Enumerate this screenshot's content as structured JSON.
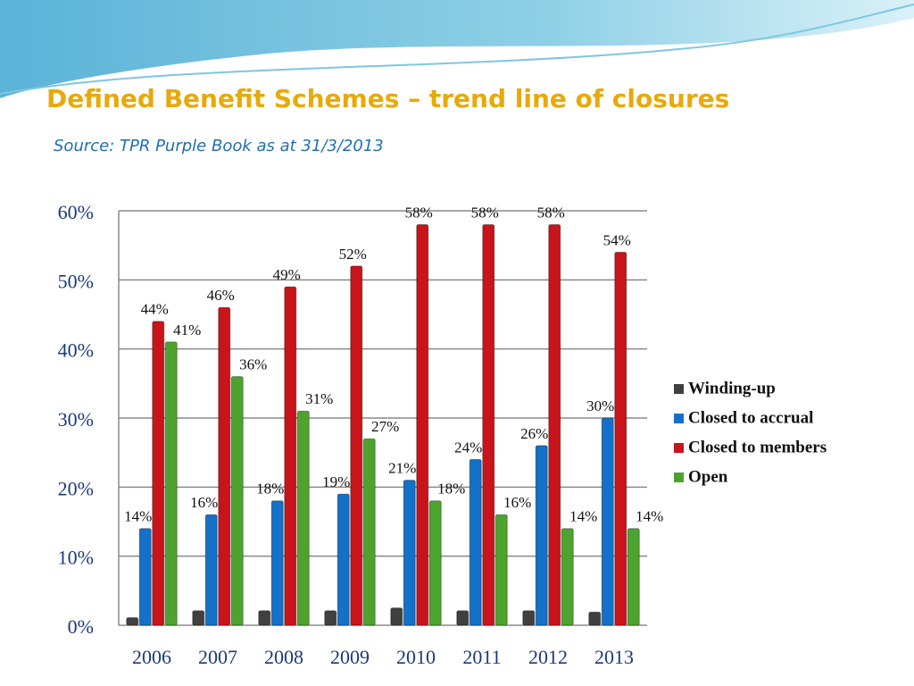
{
  "chart_data": {
    "type": "bar",
    "title": "Defined Benefit Schemes – trend line of closures",
    "subtitle": "Source: TPR Purple Book as at 31/3/2013",
    "categories": [
      "2006",
      "2007",
      "2008",
      "2009",
      "2010",
      "2011",
      "2012",
      "2013"
    ],
    "series": [
      {
        "name": "Winding-up",
        "color": "#404040",
        "values": [
          1.1,
          2.1,
          2.1,
          2.1,
          2.5,
          2.1,
          2.1,
          1.9
        ]
      },
      {
        "name": "Closed to accrual",
        "color": "#1570c8",
        "values": [
          14,
          16,
          18,
          19,
          21,
          24,
          26,
          30
        ],
        "value_labels": [
          "14%",
          "16%",
          "18%",
          "19%",
          "21%",
          "24%",
          "26%",
          "30%"
        ]
      },
      {
        "name": "Closed to members",
        "color": "#c8141a",
        "values": [
          44,
          46,
          49,
          52,
          58,
          58,
          58,
          54
        ],
        "value_labels": [
          "44%",
          "46%",
          "49%",
          "52%",
          "58%",
          "58%",
          "58%",
          "54%"
        ]
      },
      {
        "name": "Open",
        "color": "#4ea32e",
        "values": [
          41,
          36,
          31,
          27,
          18,
          16,
          14,
          14
        ],
        "value_labels": [
          "41%",
          "36%",
          "31%",
          "27%",
          "18%",
          "16%",
          "14%",
          "14%"
        ]
      }
    ],
    "ylim": [
      0,
      60
    ],
    "yticks": [
      {
        "value": 0,
        "label": "0%"
      },
      {
        "value": 10,
        "label": "10%"
      },
      {
        "value": 20,
        "label": "20%"
      },
      {
        "value": 30,
        "label": "30%"
      },
      {
        "value": 40,
        "label": "40%"
      },
      {
        "value": 50,
        "label": "50%"
      },
      {
        "value": 60,
        "label": "60%"
      }
    ],
    "grid": true,
    "legend": "right"
  }
}
